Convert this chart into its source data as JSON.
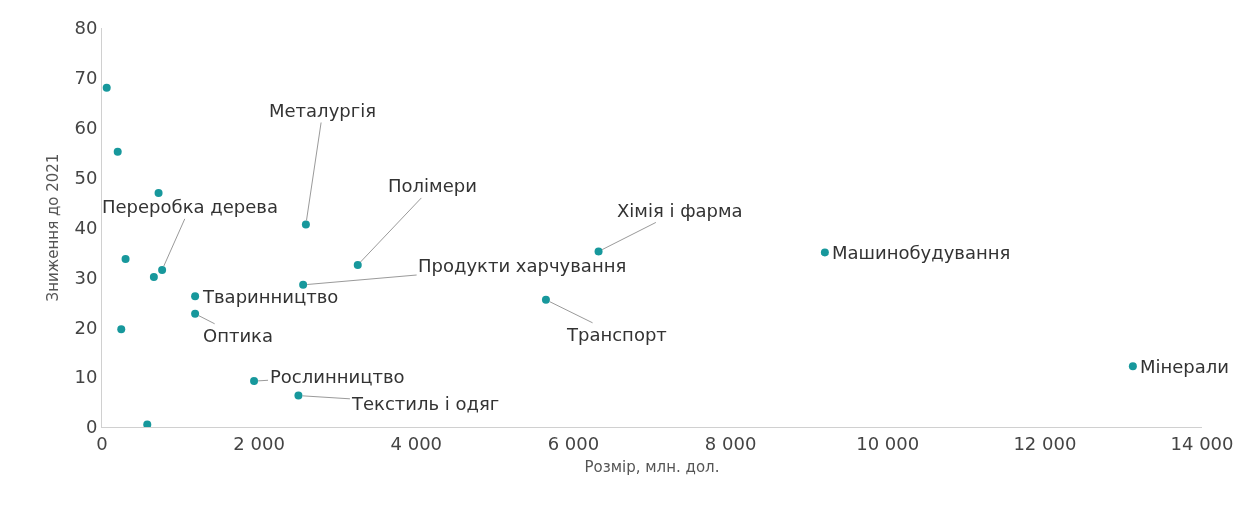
{
  "chart_data": {
    "type": "scatter",
    "xlabel": "Розмір, млн. дол.",
    "ylabel": "Зниження до 2021",
    "x": [
      60,
      200,
      720,
      300,
      245,
      576,
      660,
      765,
      1185,
      1185,
      1935,
      2500,
      2595,
      2560,
      3255,
      6320,
      5650,
      9200,
      13120
    ],
    "series": [
      {
        "color": "#17989c",
        "values": [
          68,
          55.2,
          46.9,
          33.7,
          19.6,
          0.5,
          30.1,
          31.5,
          26.2,
          22.7,
          9.2,
          6.3,
          40.6,
          28.5,
          32.5,
          35.2,
          25.5,
          35,
          12.2
        ]
      }
    ],
    "xlim": [
      0,
      14000
    ],
    "xticks": [
      0,
      {
        "value": 2000,
        "label": "2 000"
      },
      {
        "value": 4000,
        "label": "4 000"
      },
      {
        "value": 6000,
        "label": "6 000"
      },
      {
        "value": 8000,
        "label": "8 000"
      },
      {
        "value": 10000,
        "label": "10 000"
      },
      {
        "value": 12000,
        "label": "12 000"
      },
      {
        "value": 14000,
        "label": "14 000"
      }
    ],
    "ylim": [
      0,
      80
    ],
    "yticks": [
      0,
      10,
      20,
      30,
      40,
      50,
      60,
      70,
      80
    ],
    "grid": false,
    "marker": "circle",
    "annotations": [
      {
        "text": "Переробка дерева",
        "x": 765,
        "y": 31.5
      },
      {
        "text": "Металургія",
        "x": 2595,
        "y": 40.6
      },
      {
        "text": "Полімери",
        "x": 3255,
        "y": 32.5
      },
      {
        "text": "Хімія і фарма",
        "x": 6320,
        "y": 35.2
      },
      {
        "text": "Машинобудування",
        "x": 9200,
        "y": 35
      },
      {
        "text": "Тваринництво",
        "x": 1185,
        "y": 26.2
      },
      {
        "text": "Оптика",
        "x": 1185,
        "y": 22.7
      },
      {
        "text": "Продукти харчування",
        "x": 2560,
        "y": 28.5
      },
      {
        "text": "Транспорт",
        "x": 5650,
        "y": 25.5
      },
      {
        "text": "Рослинництво",
        "x": 1935,
        "y": 9.2
      },
      {
        "text": "Текстиль і одяг",
        "x": 2500,
        "y": 6.3
      },
      {
        "text": "Мінерали",
        "x": 13120,
        "y": 12.2
      }
    ]
  }
}
